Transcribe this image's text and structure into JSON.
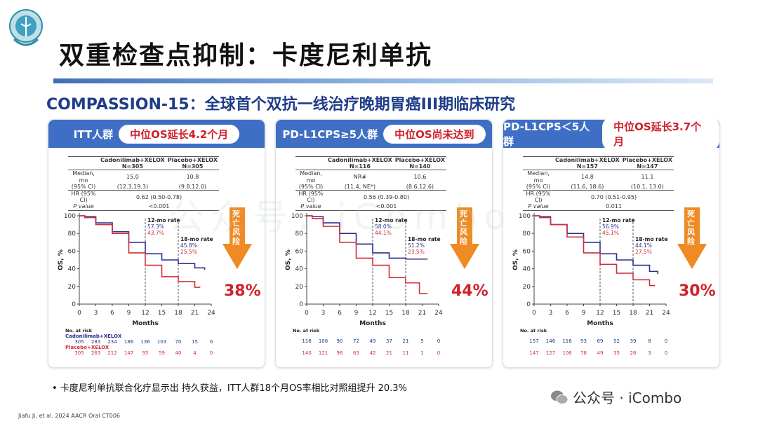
{
  "header": {
    "title": "双重检查点抑制：卡度尼利单抗",
    "subtitle": "COMPASSION-15：全球首个双抗一线治疗晚期胃癌III期临床研究"
  },
  "colors": {
    "panel_header": "#3f6fc4",
    "treatment": "#2a2f8f",
    "placebo": "#d0303a",
    "arrow": "#f08a24",
    "highlight": "#d0202a"
  },
  "panels": [
    {
      "group": "ITT人群",
      "headline": "中位OS延长4.2个月",
      "table": {
        "arm1": "Cadonilimab+XELOX",
        "n1": "N=305",
        "arm2": "Placebo+XELOX",
        "n2": "N=305",
        "median_label": "Median, mo",
        "ci_label": "(95% CI)",
        "median1": "15.0",
        "ci1": "(12.3,19.3)",
        "median2": "10.8",
        "ci2": "(9.8,12.0)",
        "hr_label": "HR (95% CI)",
        "hr": "0.62 (0.50-0.78)",
        "p_label": "P value",
        "p": "<0.001"
      },
      "rate12": {
        "label": "12-mo rate",
        "v1": "57.3%",
        "v2": "43.7%"
      },
      "rate18": {
        "label": "18-mo rate",
        "v1": "45.8%",
        "v2": "25.5%"
      },
      "arrow_text": "死亡风险",
      "reduction": "38%",
      "risk": {
        "title": "No. at risk",
        "arm1_label": "Cadonilimab+XELOX",
        "arm2_label": "Placebo+XELOX",
        "arm1": [
          "305",
          "283",
          "234",
          "186",
          "136",
          "103",
          "70",
          "15",
          "0"
        ],
        "arm2": [
          "305",
          "263",
          "212",
          "147",
          "95",
          "59",
          "40",
          "4",
          "0"
        ]
      }
    },
    {
      "group": "PD-L1CPS≥5人群",
      "headline": "中位OS尚未达到",
      "table": {
        "arm1": "Cadonilimab+XELOX",
        "n1": "N=116",
        "arm2": "Placebo+XELOX",
        "n2": "N=140",
        "median_label": "Median, mo",
        "ci_label": "(95% CI)",
        "median1": "NR#",
        "ci1": "(11.4, NE*)",
        "median2": "10.6",
        "ci2": "(8.6,12.6)",
        "hr_label": "HR (95% CI)",
        "hr": "0.56 (0.39-0.80)",
        "p_label": "P value",
        "p": "<0.001"
      },
      "rate12": {
        "label": "12-mo rate",
        "v1": "58.0%",
        "v2": "44.1%"
      },
      "rate18": {
        "label": "18-mo rate",
        "v1": "51.2%",
        "v2": "23.5%"
      },
      "arrow_text": "死亡风险",
      "reduction": "44%",
      "risk": {
        "title": "No. at risk",
        "arm1": [
          "116",
          "106",
          "90",
          "72",
          "49",
          "37",
          "21",
          "5",
          "0"
        ],
        "arm2": [
          "140",
          "121",
          "96",
          "63",
          "42",
          "21",
          "11",
          "1",
          "0"
        ]
      }
    },
    {
      "group": "PD-L1CPS＜5人群",
      "headline": "中位OS延长3.7个月",
      "table": {
        "arm1": "Cadonilimab+XELOX",
        "n1": "N=157",
        "arm2": "Placebo+XELOX",
        "n2": "N=147",
        "median_label": "Median, mo",
        "ci_label": "(95% CI)",
        "median1": "14.8",
        "ci1": "(11.6, 18.6)",
        "median2": "11.1",
        "ci2": "(10.1, 13.0)",
        "hr_label": "HR (95% CI)",
        "hr": "0.70 (0.51-0.95)",
        "p_label": "P value",
        "p": "0.011"
      },
      "rate12": {
        "label": "12-mo rate",
        "v1": "56.9%",
        "v2": "45.1%"
      },
      "rate18": {
        "label": "18-mo rate",
        "v1": "44.1%",
        "v2": "27.5%"
      },
      "arrow_text": "死亡风险",
      "reduction": "30%",
      "risk": {
        "title": "No. at risk",
        "arm1": [
          "157",
          "146",
          "116",
          "93",
          "69",
          "52",
          "39",
          "8",
          "0"
        ],
        "arm2": [
          "147",
          "127",
          "106",
          "78",
          "49",
          "35",
          "26",
          "3",
          "0"
        ]
      }
    }
  ],
  "chart_data": [
    {
      "type": "line",
      "title": "ITT人群",
      "xlabel": "Months",
      "ylabel": "OS, %",
      "xlim": [
        0,
        24
      ],
      "ylim": [
        0,
        100
      ],
      "xticks": [
        "0",
        "3",
        "6",
        "9",
        "12",
        "15",
        "18",
        "21",
        "24"
      ],
      "yticks": [
        "0",
        "20",
        "40",
        "60",
        "80",
        "100"
      ],
      "series": [
        {
          "name": "Cadonilimab+XELOX",
          "x": [
            0,
            1,
            3,
            6,
            9,
            12,
            15,
            18,
            21,
            22.8
          ],
          "y": [
            100,
            99,
            92,
            82,
            70,
            57,
            50,
            46,
            41,
            39
          ]
        },
        {
          "name": "Placebo+XELOX",
          "x": [
            0,
            1,
            3,
            6,
            9,
            12,
            15,
            18,
            21,
            22
          ],
          "y": [
            100,
            98,
            90,
            80,
            58,
            44,
            31,
            25.5,
            19,
            19
          ]
        }
      ]
    },
    {
      "type": "line",
      "title": "PD-L1CPS≥5人群",
      "xlabel": "Months",
      "ylabel": "OS, %",
      "xlim": [
        0,
        24
      ],
      "ylim": [
        0,
        100
      ],
      "xticks": [
        "0",
        "3",
        "6",
        "9",
        "12",
        "15",
        "18",
        "21",
        "24"
      ],
      "yticks": [
        "0",
        "20",
        "40",
        "60",
        "80",
        "100"
      ],
      "series": [
        {
          "name": "Cadonilimab+XELOX",
          "x": [
            0,
            1,
            3,
            6,
            9,
            12,
            15,
            18,
            21,
            22
          ],
          "y": [
            100,
            99,
            92,
            80,
            68,
            58,
            52,
            51,
            51,
            51
          ]
        },
        {
          "name": "Placebo+XELOX",
          "x": [
            0,
            1,
            3,
            6,
            9,
            12,
            15,
            18,
            20,
            20.5,
            22
          ],
          "y": [
            100,
            97,
            88,
            70,
            52,
            44,
            30,
            24,
            24,
            12,
            12
          ]
        }
      ]
    },
    {
      "type": "line",
      "title": "PD-L1CPS＜5人群",
      "xlabel": "Months",
      "ylabel": "OS, %",
      "xlim": [
        0,
        24
      ],
      "ylim": [
        0,
        100
      ],
      "xticks": [
        "0",
        "3",
        "6",
        "9",
        "12",
        "15",
        "18",
        "21",
        "24"
      ],
      "yticks": [
        "0",
        "20",
        "40",
        "60",
        "80",
        "100"
      ],
      "series": [
        {
          "name": "Cadonilimab+XELOX",
          "x": [
            0,
            1,
            3,
            6,
            9,
            12,
            15,
            18,
            21,
            22.5
          ],
          "y": [
            100,
            99,
            90,
            80,
            70,
            57,
            50,
            44,
            37,
            34
          ]
        },
        {
          "name": "Placebo+XELOX",
          "x": [
            0,
            1,
            3,
            6,
            9,
            12,
            15,
            18,
            21,
            22
          ],
          "y": [
            100,
            98,
            90,
            76,
            58,
            45,
            35,
            27.5,
            21,
            21
          ]
        }
      ]
    }
  ],
  "footer": {
    "bullet": "•  卡度尼利单抗联合化疗显示出 持久获益，ITT人群18个月OS率相比对照组提升 20.3%",
    "citation": "Jiafu Ji, et al. 2024 AACR Oral CT006",
    "watermark": "公众号 · iCombo",
    "watermark_faint": "公众号：iCombo"
  }
}
